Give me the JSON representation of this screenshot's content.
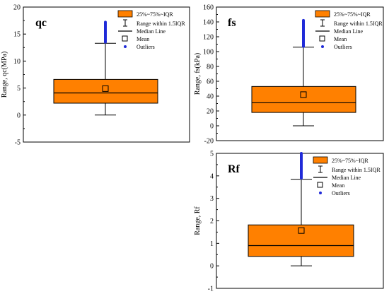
{
  "legend": {
    "iqr": "25%~75%~IQR",
    "range": "Range within 1.5IQR",
    "median": "Median Line",
    "mean": "Mean",
    "outliers": "Outliers"
  },
  "colors": {
    "box": "#ff8000",
    "outlier": "#1f2ad8",
    "axis": "#000000",
    "background": "#ffffff"
  },
  "chart_data": [
    {
      "type": "box",
      "panel_label": "qc",
      "title": "",
      "xlabel": "",
      "ylabel": "Range, qc(MPa)",
      "ylim": [
        -5,
        20
      ],
      "yticks": [
        -5,
        0,
        5,
        10,
        15,
        20
      ],
      "grid": false,
      "legend_position": "top-right",
      "box": {
        "whisker_low": 0,
        "q1": 2.2,
        "median": 4.1,
        "q3": 6.6,
        "whisker_high": 13.3,
        "mean": 4.9
      },
      "outlier_range": [
        13.5,
        17.2
      ]
    },
    {
      "type": "box",
      "panel_label": "fs",
      "title": "",
      "xlabel": "",
      "ylabel": "Range, fs(kPa)",
      "ylim": [
        -20,
        160
      ],
      "yticks": [
        -20,
        0,
        20,
        40,
        60,
        80,
        100,
        120,
        140,
        160
      ],
      "grid": false,
      "legend_position": "top-right",
      "box": {
        "whisker_low": 0,
        "q1": 18,
        "median": 31,
        "q3": 53,
        "whisker_high": 106,
        "mean": 42
      },
      "outlier_range": [
        107,
        142
      ]
    },
    {
      "type": "box",
      "panel_label": "Rf",
      "title": "",
      "xlabel": "",
      "ylabel": "Range, Rf",
      "ylim": [
        -1,
        5
      ],
      "yticks": [
        -1,
        0,
        1,
        2,
        3,
        4,
        5
      ],
      "grid": false,
      "legend_position": "top-right",
      "box": {
        "whisker_low": 0,
        "q1": 0.42,
        "median": 0.9,
        "q3": 1.82,
        "whisker_high": 3.85,
        "mean": 1.57
      },
      "outlier_range": [
        3.9,
        5.0
      ]
    }
  ]
}
